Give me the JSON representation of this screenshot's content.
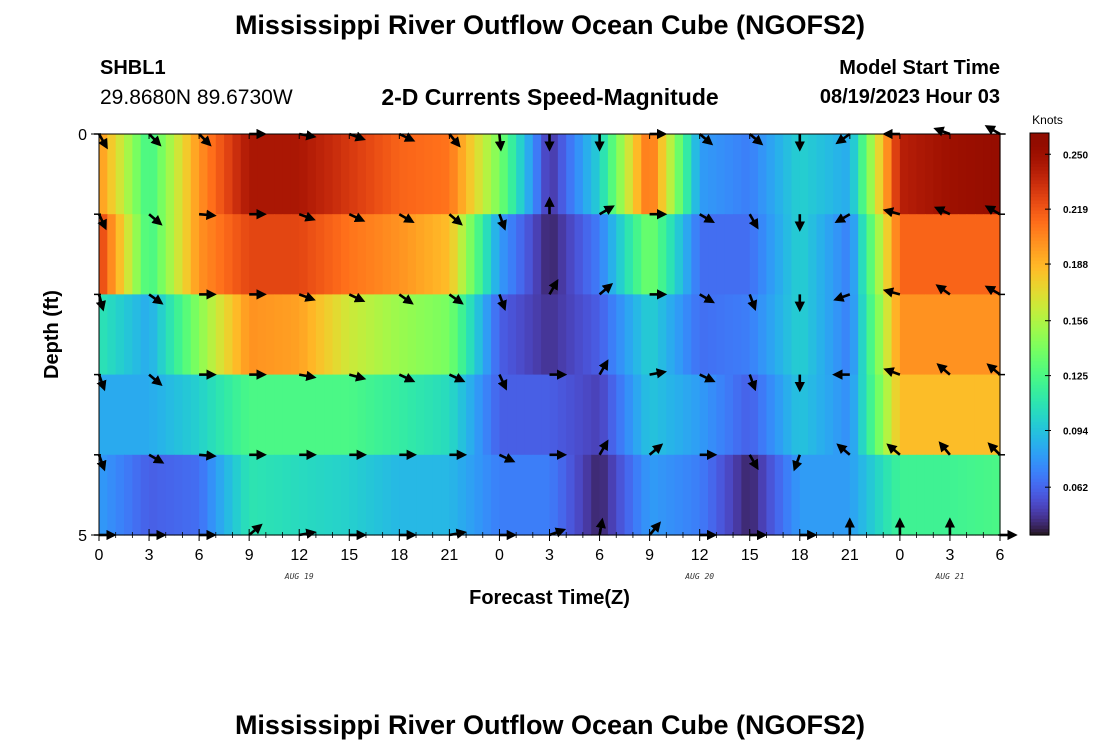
{
  "header": {
    "title": "Mississippi River Outflow Ocean Cube (NGOFS2)",
    "station": "SHBL1",
    "coords": "29.8680N  89.6730W",
    "plot_title": "2-D Currents Speed-Magnitude",
    "start_label": "Model Start Time",
    "start_value": "08/19/2023 Hour 03"
  },
  "footer": {
    "title": "Mississippi River Outflow Ocean Cube (NGOFS2)"
  },
  "colors": {
    "background": "#ffffff",
    "axis": "#000000"
  },
  "chart_data": {
    "type": "heatmap",
    "xlabel": "Forecast Time(Z)",
    "ylabel": "Depth (ft)",
    "colorbar_label": "Knots",
    "ylim": [
      0,
      5
    ],
    "y_ticks": [
      "0",
      "5"
    ],
    "y_tick_values": [
      0,
      5
    ],
    "xlim": [
      0,
      54
    ],
    "x_ticks": [
      "0",
      "3",
      "6",
      "9",
      "12",
      "15",
      "18",
      "21",
      "0",
      "3",
      "6",
      "9",
      "12",
      "15",
      "18",
      "21",
      "0",
      "3",
      "6"
    ],
    "date_labels": [
      {
        "text": "AUG 19",
        "x": 12
      },
      {
        "text": "AUG 20",
        "x": 36
      },
      {
        "text": "AUG 21",
        "x": 51
      }
    ],
    "colorbar_ticks": [
      "0.250",
      "0.219",
      "0.188",
      "0.156",
      "0.125",
      "0.094",
      "0.062"
    ],
    "colorbar_tick_values": [
      0.25,
      0.219,
      0.188,
      0.156,
      0.125,
      0.094,
      0.062
    ],
    "colorbar_range": [
      0.035,
      0.262
    ],
    "grid": false,
    "hours": [
      0,
      3,
      6,
      9,
      12,
      15,
      18,
      21,
      24,
      27,
      30,
      33,
      36,
      39,
      42,
      45,
      48,
      51,
      54
    ],
    "layer_depths": [
      0,
      1,
      2,
      3,
      4,
      5
    ],
    "speed": [
      [
        0.2,
        0.23,
        0.11,
        0.085,
        0.08
      ],
      [
        0.12,
        0.12,
        0.085,
        0.085,
        0.06
      ],
      [
        0.2,
        0.2,
        0.145,
        0.1,
        0.065
      ],
      [
        0.245,
        0.225,
        0.2,
        0.125,
        0.11
      ],
      [
        0.245,
        0.225,
        0.195,
        0.125,
        0.105
      ],
      [
        0.23,
        0.21,
        0.165,
        0.125,
        0.1
      ],
      [
        0.215,
        0.2,
        0.15,
        0.115,
        0.09
      ],
      [
        0.21,
        0.185,
        0.14,
        0.105,
        0.09
      ],
      [
        0.14,
        0.08,
        0.06,
        0.06,
        0.07
      ],
      [
        0.045,
        0.04,
        0.045,
        0.06,
        0.07
      ],
      [
        0.1,
        0.07,
        0.06,
        0.05,
        0.04
      ],
      [
        0.215,
        0.14,
        0.1,
        0.095,
        0.08
      ],
      [
        0.08,
        0.065,
        0.065,
        0.08,
        0.07
      ],
      [
        0.07,
        0.065,
        0.07,
        0.06,
        0.04
      ],
      [
        0.1,
        0.1,
        0.1,
        0.095,
        0.08
      ],
      [
        0.085,
        0.07,
        0.07,
        0.075,
        0.08
      ],
      [
        0.24,
        0.215,
        0.2,
        0.185,
        0.12
      ],
      [
        0.25,
        0.215,
        0.2,
        0.185,
        0.12
      ],
      [
        0.255,
        0.215,
        0.2,
        0.185,
        0.125
      ]
    ],
    "direction_deg": [
      [
        150,
        155,
        165,
        160,
        160,
        90
      ],
      [
        135,
        130,
        125,
        130,
        120,
        90
      ],
      [
        135,
        95,
        90,
        90,
        95,
        90
      ],
      [
        90,
        90,
        90,
        90,
        90,
        50
      ],
      [
        100,
        110,
        110,
        100,
        90,
        80
      ],
      [
        110,
        115,
        115,
        105,
        90,
        90
      ],
      [
        115,
        120,
        125,
        115,
        90,
        90
      ],
      [
        140,
        130,
        125,
        115,
        90,
        80
      ],
      [
        175,
        160,
        160,
        155,
        115,
        90
      ],
      [
        180,
        0,
        30,
        90,
        90,
        70
      ],
      [
        180,
        60,
        50,
        30,
        30,
        10
      ],
      [
        90,
        90,
        90,
        80,
        50,
        40
      ],
      [
        130,
        120,
        120,
        115,
        90,
        90
      ],
      [
        130,
        150,
        160,
        160,
        150,
        90
      ],
      [
        180,
        180,
        180,
        180,
        200,
        90
      ],
      [
        235,
        240,
        250,
        270,
        310,
        0
      ],
      [
        270,
        285,
        285,
        290,
        310,
        0
      ],
      [
        290,
        295,
        305,
        310,
        320,
        0
      ],
      [
        300,
        300,
        300,
        310,
        315,
        90
      ]
    ]
  }
}
